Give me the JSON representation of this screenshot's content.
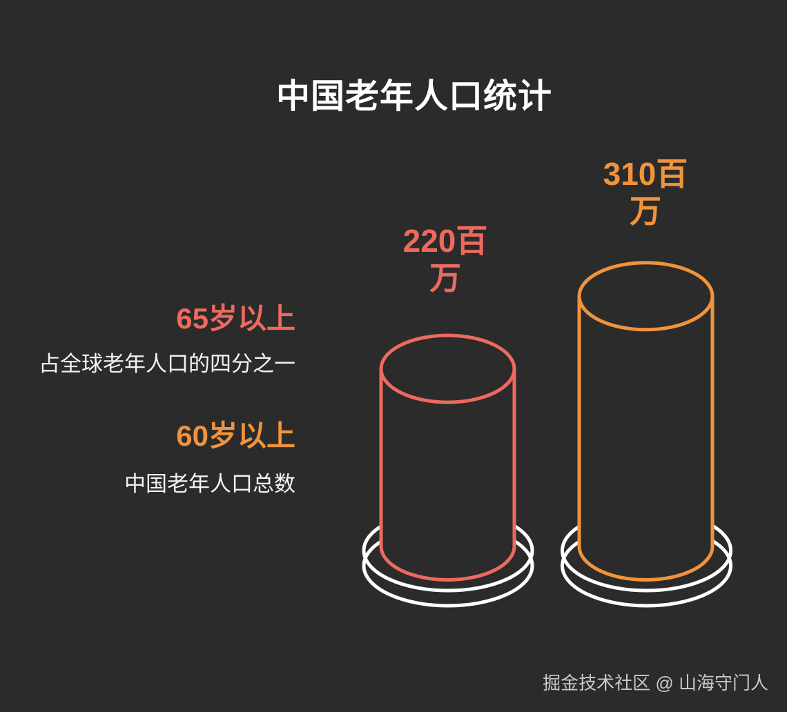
{
  "page": {
    "background_color": "#2b2b2b"
  },
  "chart_data": {
    "type": "bar",
    "subtype": "3d-cylinder-outline",
    "title": "中国老年人口统计",
    "unit": "百万",
    "categories": [
      "65岁以上",
      "60岁以上"
    ],
    "values": [
      220,
      310
    ],
    "series": [
      {
        "name": "65岁以上",
        "value": 220,
        "value_label": "220百万",
        "description": "占全球老年人口的四分之一",
        "color": "#ee6a5e"
      },
      {
        "name": "60岁以上",
        "value": 310,
        "value_label": "310百万",
        "description": "中国老年人口总数",
        "color": "#f0943c"
      }
    ],
    "pedestal_color": "#ffffff",
    "title_color": "#ffffff",
    "description_color": "#f4f4f4",
    "grid": false,
    "axes_visible": false,
    "legend_position": "left-annotations"
  },
  "footer": {
    "watermark": "掘金技术社区 @ 山海守门人"
  }
}
